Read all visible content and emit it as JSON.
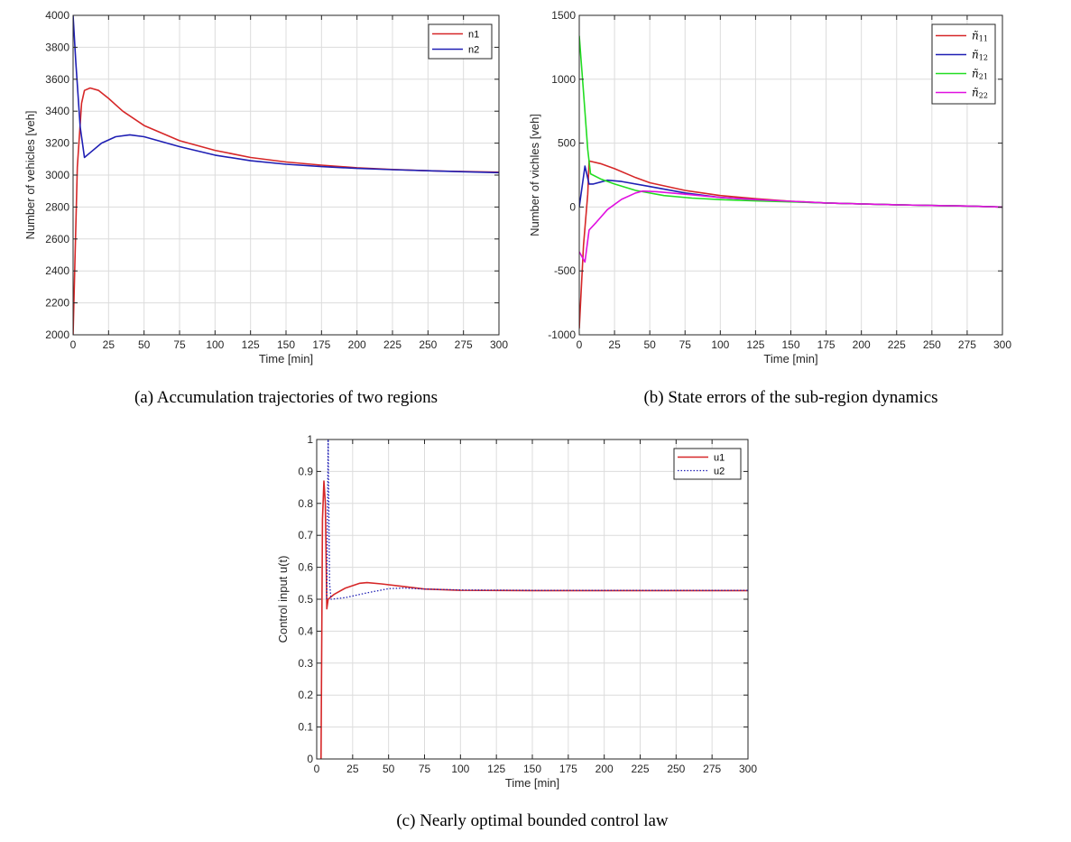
{
  "chart_data": [
    {
      "type": "line",
      "caption": "(a)  Accumulation trajectories of two regions",
      "xlabel": "Time [min]",
      "ylabel": "Number of vehicles [veh]",
      "xlim": [
        0,
        300
      ],
      "ylim": [
        2000,
        4000
      ],
      "xticks": [
        0,
        25,
        50,
        75,
        100,
        125,
        150,
        175,
        200,
        225,
        250,
        275,
        300
      ],
      "yticks": [
        2000,
        2200,
        2400,
        2600,
        2800,
        3000,
        3200,
        3400,
        3600,
        3800,
        4000
      ],
      "grid": true,
      "legend_position": "top-right",
      "series": [
        {
          "name": "n1",
          "color": "#d62728",
          "style": "solid",
          "points": [
            [
              0,
              2000
            ],
            [
              3,
              3050
            ],
            [
              6,
              3450
            ],
            [
              8,
              3530
            ],
            [
              12,
              3545
            ],
            [
              18,
              3530
            ],
            [
              25,
              3480
            ],
            [
              35,
              3400
            ],
            [
              50,
              3310
            ],
            [
              75,
              3215
            ],
            [
              100,
              3155
            ],
            [
              125,
              3110
            ],
            [
              150,
              3082
            ],
            [
              175,
              3062
            ],
            [
              200,
              3046
            ],
            [
              225,
              3035
            ],
            [
              250,
              3027
            ],
            [
              275,
              3022
            ],
            [
              300,
              3018
            ]
          ]
        },
        {
          "name": "n2",
          "color": "#1f1fb4",
          "style": "solid",
          "points": [
            [
              0,
              4000
            ],
            [
              2,
              3700
            ],
            [
              5,
              3300
            ],
            [
              8,
              3110
            ],
            [
              12,
              3140
            ],
            [
              20,
              3200
            ],
            [
              30,
              3240
            ],
            [
              40,
              3252
            ],
            [
              50,
              3240
            ],
            [
              75,
              3178
            ],
            [
              100,
              3125
            ],
            [
              125,
              3090
            ],
            [
              150,
              3068
            ],
            [
              175,
              3053
            ],
            [
              200,
              3042
            ],
            [
              225,
              3034
            ],
            [
              250,
              3027
            ],
            [
              275,
              3021
            ],
            [
              300,
              3015
            ]
          ]
        }
      ]
    },
    {
      "type": "line",
      "caption": "(b)  State errors of the sub-region dynamics",
      "xlabel": "Time [min]",
      "ylabel": "Number of vichles [veh]",
      "xlim": [
        0,
        300
      ],
      "ylim": [
        -1000,
        1500
      ],
      "xticks": [
        0,
        25,
        50,
        75,
        100,
        125,
        150,
        175,
        200,
        225,
        250,
        275,
        300
      ],
      "yticks": [
        -1000,
        -500,
        0,
        500,
        1000,
        1500
      ],
      "grid": true,
      "legend_position": "top-right",
      "series": [
        {
          "name": "ñ",
          "name_sub": "11",
          "color": "#d62728",
          "style": "solid",
          "points": [
            [
              0,
              -950
            ],
            [
              3,
              -300
            ],
            [
              6,
              100
            ],
            [
              7,
              360
            ],
            [
              15,
              340
            ],
            [
              25,
              300
            ],
            [
              40,
              230
            ],
            [
              50,
              190
            ],
            [
              75,
              130
            ],
            [
              100,
              90
            ],
            [
              125,
              65
            ],
            [
              150,
              45
            ],
            [
              175,
              32
            ],
            [
              200,
              25
            ],
            [
              225,
              18
            ],
            [
              250,
              12
            ],
            [
              275,
              8
            ],
            [
              300,
              0
            ]
          ]
        },
        {
          "name": "ñ",
          "name_sub": "12",
          "color": "#1f1fb4",
          "style": "solid",
          "points": [
            [
              0,
              0
            ],
            [
              4,
              320
            ],
            [
              7,
              180
            ],
            [
              10,
              180
            ],
            [
              20,
              210
            ],
            [
              30,
              200
            ],
            [
              50,
              160
            ],
            [
              75,
              110
            ],
            [
              100,
              75
            ],
            [
              125,
              58
            ],
            [
              150,
              42
            ],
            [
              175,
              32
            ],
            [
              200,
              24
            ],
            [
              225,
              18
            ],
            [
              250,
              12
            ],
            [
              275,
              8
            ],
            [
              300,
              0
            ]
          ]
        },
        {
          "name": "ñ",
          "name_sub": "21",
          "color": "#22dd22",
          "style": "solid",
          "points": [
            [
              0,
              1340
            ],
            [
              3,
              900
            ],
            [
              6,
              450
            ],
            [
              8,
              260
            ],
            [
              15,
              220
            ],
            [
              25,
              180
            ],
            [
              40,
              130
            ],
            [
              60,
              90
            ],
            [
              80,
              70
            ],
            [
              100,
              58
            ],
            [
              125,
              48
            ],
            [
              150,
              40
            ],
            [
              175,
              32
            ],
            [
              200,
              25
            ],
            [
              225,
              18
            ],
            [
              250,
              12
            ],
            [
              275,
              8
            ],
            [
              300,
              0
            ]
          ]
        },
        {
          "name": "ñ",
          "name_sub": "22",
          "color": "#e010e0",
          "style": "solid",
          "points": [
            [
              0,
              -350
            ],
            [
              4,
              -430
            ],
            [
              7,
              -180
            ],
            [
              12,
              -120
            ],
            [
              20,
              -20
            ],
            [
              30,
              60
            ],
            [
              40,
              110
            ],
            [
              45,
              125
            ],
            [
              55,
              120
            ],
            [
              75,
              100
            ],
            [
              100,
              75
            ],
            [
              125,
              58
            ],
            [
              150,
              45
            ],
            [
              175,
              32
            ],
            [
              200,
              25
            ],
            [
              225,
              18
            ],
            [
              250,
              12
            ],
            [
              275,
              8
            ],
            [
              300,
              0
            ]
          ]
        }
      ]
    },
    {
      "type": "line",
      "caption": "(c)  Nearly optimal bounded control law",
      "xlabel": "Time [min]",
      "ylabel": "Control input u(t)",
      "xlim": [
        0,
        300
      ],
      "ylim": [
        0,
        1
      ],
      "xticks": [
        0,
        25,
        50,
        75,
        100,
        125,
        150,
        175,
        200,
        225,
        250,
        275,
        300
      ],
      "yticks": [
        0,
        0.1,
        0.2,
        0.3,
        0.4,
        0.5,
        0.6,
        0.7,
        0.8,
        0.9,
        1
      ],
      "grid": true,
      "legend_position": "top-right",
      "series": [
        {
          "name": "u1",
          "color": "#d62728",
          "style": "solid",
          "points": [
            [
              3,
              0
            ],
            [
              4,
              0.75
            ],
            [
              5,
              0.87
            ],
            [
              6,
              0.8
            ],
            [
              7,
              0.47
            ],
            [
              8,
              0.5
            ],
            [
              12,
              0.515
            ],
            [
              20,
              0.535
            ],
            [
              30,
              0.55
            ],
            [
              35,
              0.552
            ],
            [
              45,
              0.548
            ],
            [
              60,
              0.54
            ],
            [
              75,
              0.532
            ],
            [
              100,
              0.528
            ],
            [
              150,
              0.527
            ],
            [
              200,
              0.527
            ],
            [
              250,
              0.527
            ],
            [
              300,
              0.527
            ]
          ]
        },
        {
          "name": "u2",
          "color": "#1f1fb4",
          "style": "dotted",
          "points": [
            [
              7,
              0.5
            ],
            [
              8,
              1
            ],
            [
              9,
              0.55
            ],
            [
              10,
              0.5
            ],
            [
              20,
              0.505
            ],
            [
              35,
              0.52
            ],
            [
              50,
              0.533
            ],
            [
              60,
              0.535
            ],
            [
              75,
              0.532
            ],
            [
              100,
              0.529
            ],
            [
              150,
              0.528
            ],
            [
              200,
              0.528
            ],
            [
              250,
              0.528
            ],
            [
              300,
              0.528
            ]
          ]
        }
      ]
    }
  ]
}
